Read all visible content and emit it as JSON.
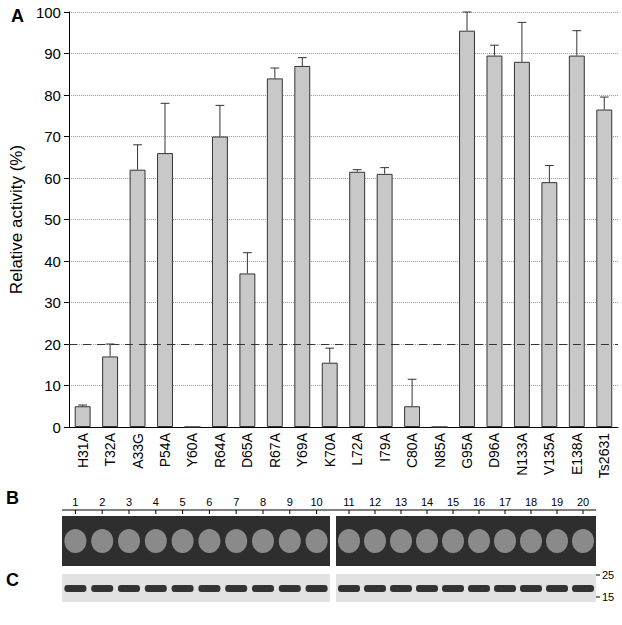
{
  "chart_data": {
    "type": "bar",
    "panel_label": "A",
    "categories": [
      "H31A",
      "T32A",
      "A33G",
      "P54A",
      "Y60A",
      "R64A",
      "D65A",
      "R67A",
      "Y69A",
      "K70A",
      "L72A",
      "I79A",
      "C80A",
      "N85A",
      "G95A",
      "D96A",
      "N133A",
      "V135A",
      "E138A",
      "Ts2631"
    ],
    "values": [
      5,
      17,
      62,
      66,
      0,
      70,
      37,
      84,
      87,
      15.5,
      61.5,
      61,
      5,
      0,
      95.5,
      89.5,
      88,
      59,
      89.5,
      76.5
    ],
    "errors": [
      0.3,
      3,
      6,
      12,
      null,
      7.5,
      5,
      2.5,
      2,
      3.5,
      0.5,
      1.5,
      6.5,
      null,
      4.5,
      2.5,
      9.5,
      4,
      6,
      3
    ],
    "color": "#c8c8c8",
    "ylabel": "Relative activity (%)",
    "ylim": [
      0,
      100
    ],
    "yticks": [
      0,
      10,
      20,
      30,
      40,
      50,
      60,
      70,
      80,
      90,
      100
    ],
    "grid": true,
    "ref_line": 20
  },
  "gels": [
    {
      "label": "B",
      "lanes": [
        1,
        2,
        3,
        4,
        5,
        6,
        7,
        8,
        9,
        10,
        11,
        12,
        13,
        14,
        15,
        16,
        17,
        18,
        19,
        20
      ]
    },
    {
      "label": "C",
      "markers": [
        25,
        15
      ]
    }
  ]
}
